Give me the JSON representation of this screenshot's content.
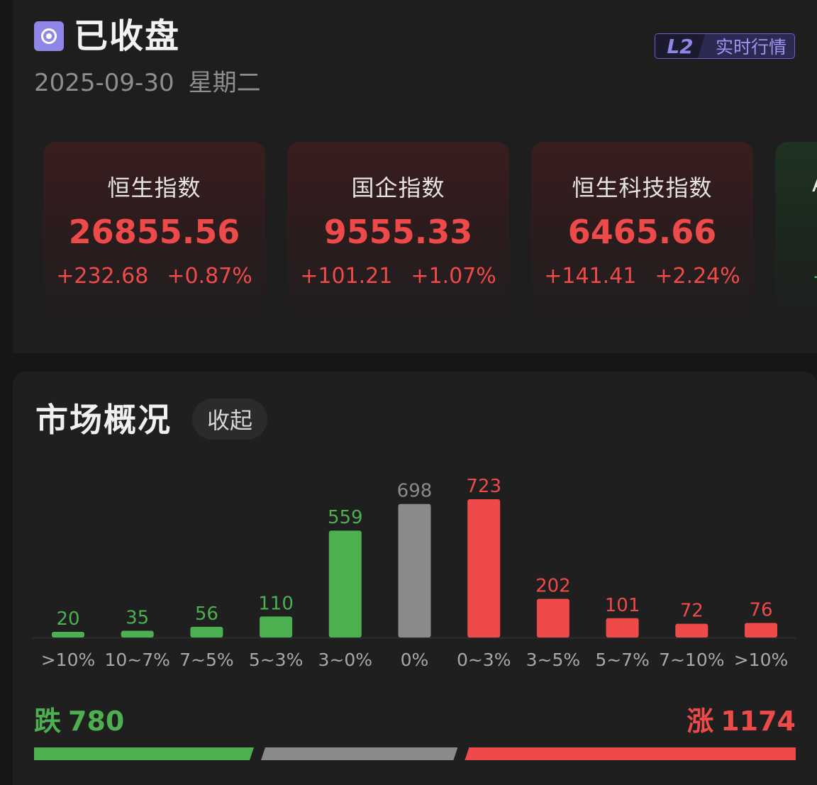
{
  "header": {
    "status_icon": "record-stop-icon",
    "status_title": "已收盘",
    "date": "2025-09-30",
    "weekday": "星期二",
    "badge_level": "L2",
    "badge_text": "实时行情"
  },
  "indices": [
    {
      "name": "恒生指数",
      "value": "26855.56",
      "change": "+232.68",
      "change_pct": "+0.87%"
    },
    {
      "name": "国企指数",
      "value": "9555.33",
      "change": "+101.21",
      "change_pct": "+1.07%"
    },
    {
      "name": "恒生科技指数",
      "value": "6465.66",
      "change": "+141.41",
      "change_pct": "+2.24%"
    },
    {
      "name": "A",
      "value": "",
      "change": "-",
      "change_pct": ""
    }
  ],
  "overview": {
    "title": "市场概况",
    "collapse_label": "收起",
    "down_label": "跌",
    "down_count": "780",
    "up_label": "涨",
    "up_count": "1174",
    "colors": {
      "down": "#4caf50",
      "flat": "#8a8a8a",
      "up": "#ef4a4a"
    }
  },
  "chart_data": {
    "type": "bar",
    "title": "",
    "xlabel": "",
    "ylabel": "",
    "categories": [
      ">10%",
      "10~7%",
      "7~5%",
      "5~3%",
      "3~0%",
      "0%",
      "0~3%",
      "3~5%",
      "5~7%",
      "7~10%",
      ">10%"
    ],
    "values": [
      20,
      35,
      56,
      110,
      559,
      698,
      723,
      202,
      101,
      72,
      76
    ],
    "bar_colors": [
      "#4caf50",
      "#4caf50",
      "#4caf50",
      "#4caf50",
      "#4caf50",
      "#8a8a8a",
      "#ef4a4a",
      "#ef4a4a",
      "#ef4a4a",
      "#ef4a4a",
      "#ef4a4a"
    ],
    "ylim": [
      0,
      723
    ],
    "grid": false,
    "legend": "none"
  }
}
